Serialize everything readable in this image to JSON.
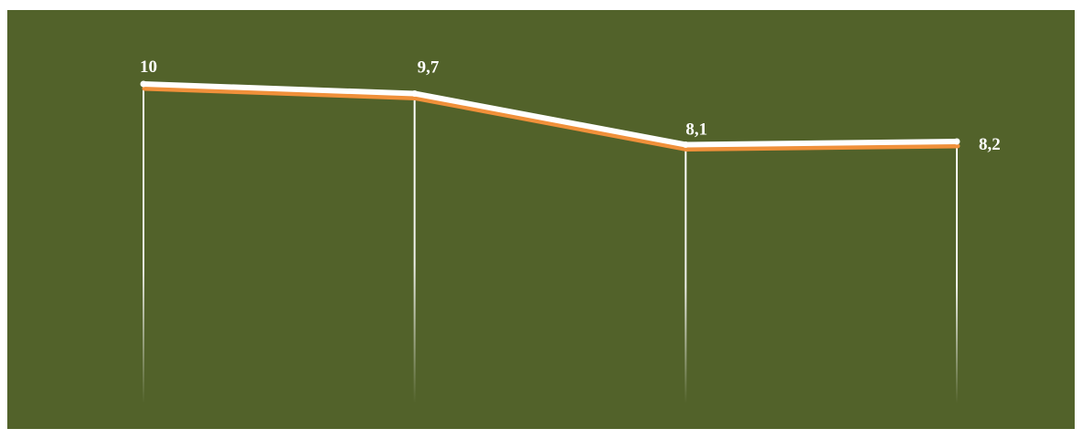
{
  "chart_data": {
    "type": "line",
    "title": "",
    "xlabel": "",
    "ylabel": "",
    "x": [
      "",
      "",
      "",
      ""
    ],
    "series": [
      {
        "values": [
          10,
          9.7,
          8.1,
          8.2
        ],
        "labels": [
          "10",
          "9,7",
          "8,1",
          "8,2"
        ]
      }
    ],
    "ylim": [
      0,
      11
    ],
    "grid": false,
    "legend": "none",
    "drop_lines": true
  },
  "colors": {
    "background": "#52622a",
    "line": "#ffffff",
    "line_shadow": "#f0903a",
    "drop_line": "#ffffff",
    "label": "#ffffff"
  }
}
